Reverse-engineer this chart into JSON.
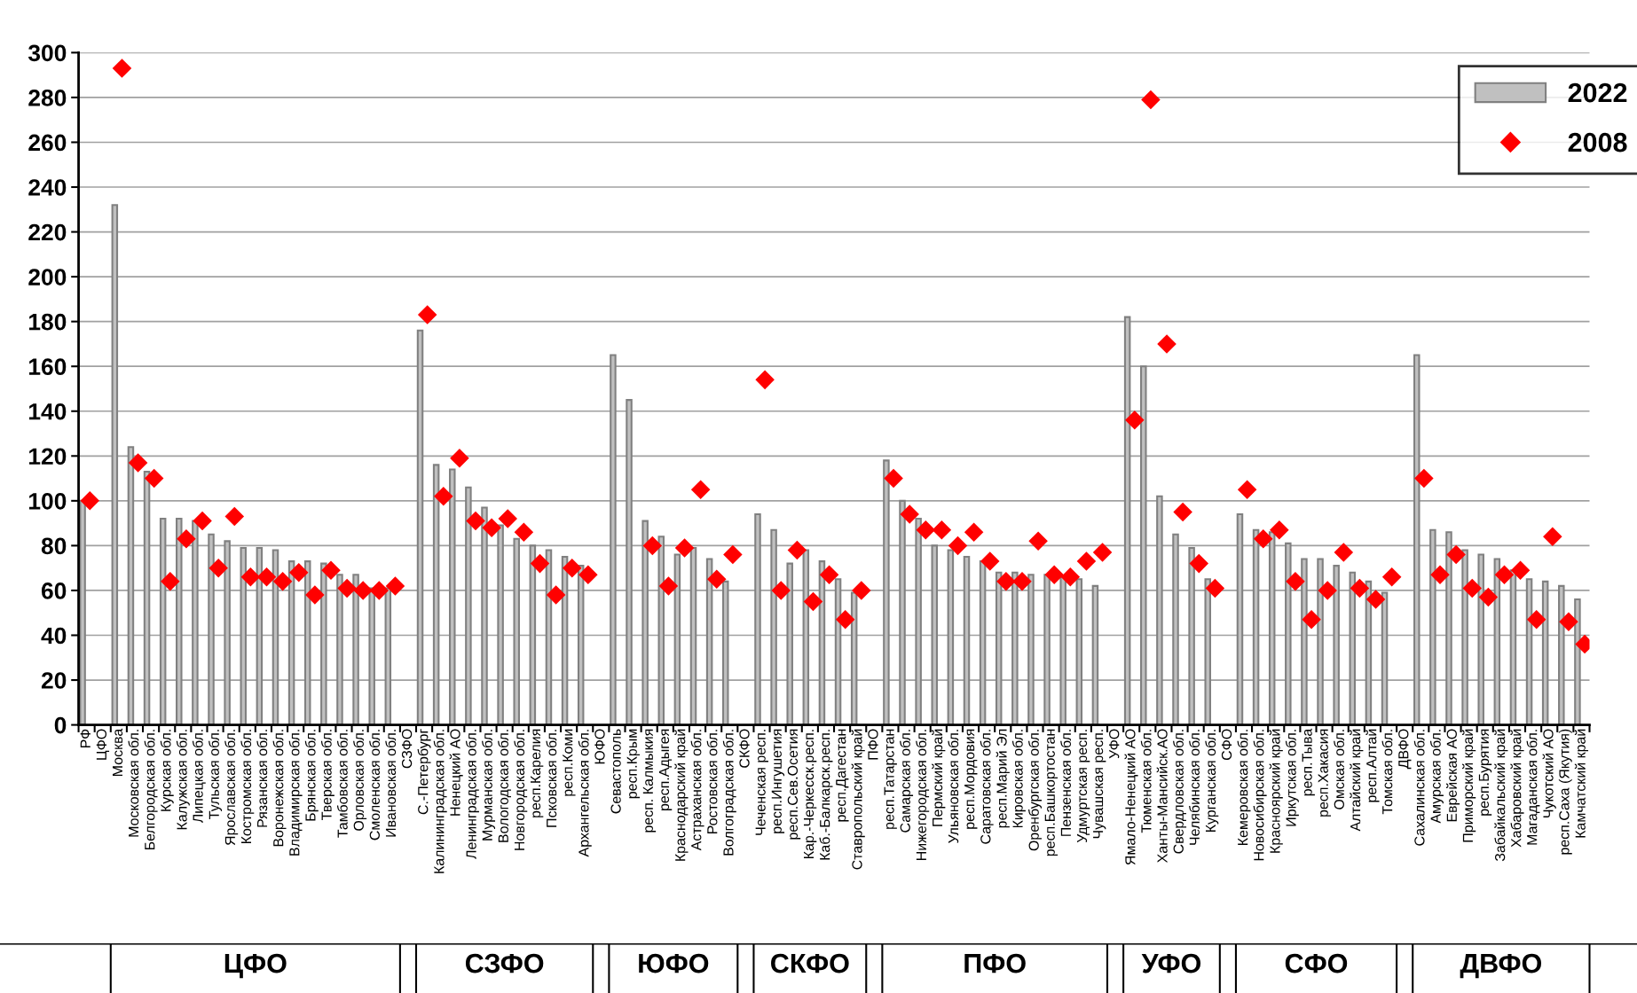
{
  "chart_data": {
    "type": "bar",
    "categories": [
      "РФ",
      "ЦФО",
      "Москва",
      "Московская обл.",
      "Белгородская обл.",
      "Курская обл.",
      "Калужская обл.",
      "Липецкая обл.",
      "Тульская обл.",
      "Ярославская обл.",
      "Костромская обл.",
      "Рязанская обл.",
      "Воронежская обл.",
      "Владимирская обл.",
      "Брянская обл.",
      "Тверская обл.",
      "Тамбовская обл.",
      "Орловская обл.",
      "Смоленская обл.",
      "Ивановская обл.",
      "СЗФО",
      "С.-Петербург",
      "Калининградская обл.",
      "Ненецкий АО",
      "Ленинградская обл.",
      "Мурманская обл.",
      "Вологодская обл.",
      "Новгородская обл.",
      "респ.Карелия",
      "Псковская обл.",
      "респ.Коми",
      "Архангельская обл.",
      "ЮФО",
      "Севастополь",
      "респ.Крым",
      "респ. Калмыкия",
      "респ.Адыгея",
      "Краснодарский край",
      "Астраханская обл.",
      "Ростовская обл.",
      "Волгоградская обл.",
      "СКФО",
      "Чеченская респ.",
      "респ.Ингушетия",
      "респ.Сев.Осетия",
      "Кар.-Черкесск.респ.",
      "Каб.-Балкарск.респ.",
      "респ.Дагестан",
      "Ставропольский край",
      "ПФО",
      "респ.Татарстан",
      "Самарская обл.",
      "Нижегородская обл.",
      "Пермский край",
      "Ульяновская обл.",
      "респ.Мордовия",
      "Саратовская обл.",
      "респ.Марий Эл",
      "Кировская обл.",
      "Оренбургская обл.",
      "респ.Башкортостан",
      "Пензенская обл.",
      "Удмуртская респ.",
      "Чувашская респ.",
      "УФО",
      "Ямало-Ненецкий АО",
      "Тюменская обл.",
      "Ханты-Мансийск.АО",
      "Свердловская обл.",
      "Челябинская обл.",
      "Курганская обл.",
      "СФО",
      "Кемеровская обл.",
      "Новосибирская обл.",
      "Красноярский край",
      "Иркутская обл.",
      "респ.Тыва",
      "респ.Хакасия",
      "Омская обл.",
      "Алтайский край",
      "респ.Алтай",
      "Томская обл.",
      "ДВФО",
      "Сахалинская обл.",
      "Амурская обл.",
      "Еврейская АО",
      "Приморский край",
      "респ.Бурятия",
      "Забайкальский край",
      "Хабаровский край",
      "Магаданская обл.",
      "Чукотский АО",
      "респ.Саха (Якутия)",
      "Камчатский край"
    ],
    "series": [
      {
        "name": "2022",
        "color": "#c0c0c0",
        "values": [
          100,
          null,
          232,
          124,
          113,
          92,
          92,
          91,
          85,
          82,
          79,
          79,
          78,
          73,
          73,
          72,
          67,
          67,
          61,
          61,
          null,
          176,
          116,
          114,
          106,
          97,
          89,
          83,
          80,
          78,
          75,
          71,
          null,
          165,
          145,
          91,
          84,
          76,
          79,
          74,
          64,
          null,
          94,
          87,
          72,
          78,
          73,
          65,
          59,
          null,
          118,
          100,
          92,
          80,
          78,
          75,
          73,
          68,
          68,
          67,
          67,
          66,
          65,
          62,
          null,
          182,
          160,
          102,
          85,
          79,
          65,
          null,
          94,
          87,
          86,
          81,
          74,
          74,
          71,
          68,
          64,
          59,
          null,
          165,
          87,
          86,
          78,
          76,
          74,
          69,
          65,
          64,
          62,
          56
        ]
      },
      {
        "name": "2008",
        "type": "scatter",
        "color": "#ff0000",
        "values": [
          100,
          null,
          293,
          117,
          110,
          64,
          83,
          91,
          70,
          93,
          66,
          66,
          64,
          68,
          58,
          69,
          61,
          60,
          60,
          62,
          null,
          183,
          102,
          119,
          91,
          88,
          92,
          86,
          72,
          58,
          70,
          67,
          null,
          null,
          null,
          80,
          62,
          79,
          105,
          65,
          76,
          null,
          154,
          60,
          78,
          55,
          67,
          47,
          60,
          null,
          110,
          94,
          87,
          87,
          80,
          86,
          73,
          64,
          64,
          82,
          67,
          66,
          73,
          77,
          null,
          136,
          279,
          170,
          95,
          72,
          61,
          null,
          105,
          83,
          87,
          64,
          47,
          60,
          77,
          61,
          56,
          66,
          null,
          110,
          67,
          76,
          61,
          57,
          67,
          69,
          47,
          84,
          46,
          36
        ]
      }
    ],
    "ylim": [
      0,
      300
    ],
    "yticks": [
      0,
      20,
      40,
      60,
      80,
      100,
      120,
      140,
      160,
      180,
      200,
      220,
      240,
      260,
      280,
      300
    ],
    "grid": "y",
    "legend": "top right",
    "marker": "diamond",
    "annotations": [
      "ЦФО",
      "СЗФО",
      "ЮФО",
      "СКФО",
      "ПФО",
      "УФО",
      "СФО",
      "ДВФО"
    ]
  }
}
